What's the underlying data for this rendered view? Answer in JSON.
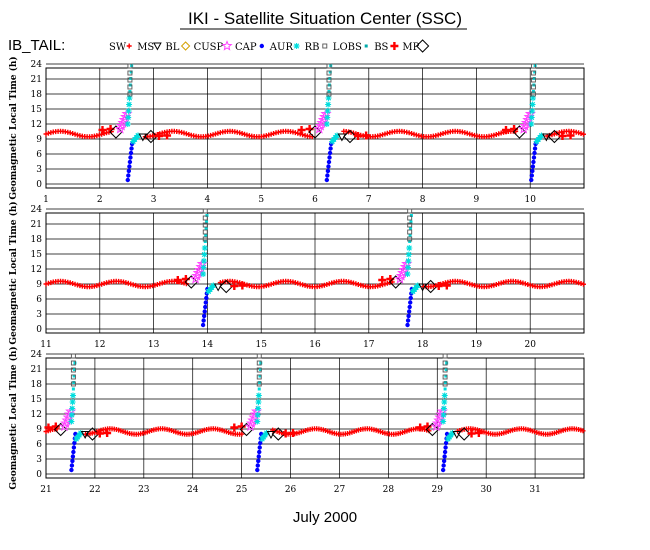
{
  "title": "IKI - Satellite Situation Center (SSC)",
  "legend": {
    "prefix": "IB_TAIL:",
    "items": [
      {
        "label": "SW",
        "marker": "red-plus",
        "color": "#ff0000"
      },
      {
        "label": "MS",
        "marker": "down-triangle",
        "color": "#000000"
      },
      {
        "label": "BL",
        "marker": "diamond",
        "color": "#d4a000"
      },
      {
        "label": "CUSP",
        "marker": "star",
        "color": "#ff44ff"
      },
      {
        "label": "CAP",
        "marker": "dot",
        "color": "#0000ff"
      },
      {
        "label": "AUR",
        "marker": "asterisk",
        "color": "#00dddd"
      },
      {
        "label": "RB",
        "marker": "square",
        "color": "#555555"
      },
      {
        "label": "LOBS",
        "marker": "small-square",
        "color": "#00aaaa"
      },
      {
        "label": "BS",
        "marker": "big-plus",
        "color": "#ff0000"
      },
      {
        "label": "MP",
        "marker": "big-diamond",
        "color": "#000000"
      }
    ]
  },
  "xlabel": "July    2000",
  "chart_data": {
    "type": "scatter",
    "ylabel": "Geomagnetic Local Time (h)",
    "ylim": [
      0,
      24
    ],
    "yticks": [
      0,
      3,
      6,
      9,
      12,
      15,
      18,
      21,
      24
    ],
    "panels": [
      {
        "xlim": [
          1,
          11
        ],
        "xticks": [
          1,
          2,
          3,
          4,
          5,
          6,
          7,
          8,
          9,
          10
        ],
        "sw_level": 10,
        "passes": [
          2.5,
          6.2,
          10.0
        ]
      },
      {
        "xlim": [
          11,
          21
        ],
        "xticks": [
          11,
          12,
          13,
          14,
          15,
          16,
          17,
          18,
          19,
          20
        ],
        "sw_level": 9,
        "passes": [
          13.9,
          17.7
        ]
      },
      {
        "xlim": [
          21,
          32
        ],
        "xticks": [
          21,
          22,
          23,
          24,
          25,
          26,
          27,
          28,
          29,
          30,
          31
        ],
        "sw_level": 8.5,
        "passes": [
          21.5,
          25.3,
          29.1
        ]
      }
    ],
    "series_notes": "Solar wind (SW) GLT oscillates ~9-11 h between magnetosphere passes; each pass sweeps GLT 0-24 h through CAP, AUR, CUSP, LOBS and RB regions."
  }
}
